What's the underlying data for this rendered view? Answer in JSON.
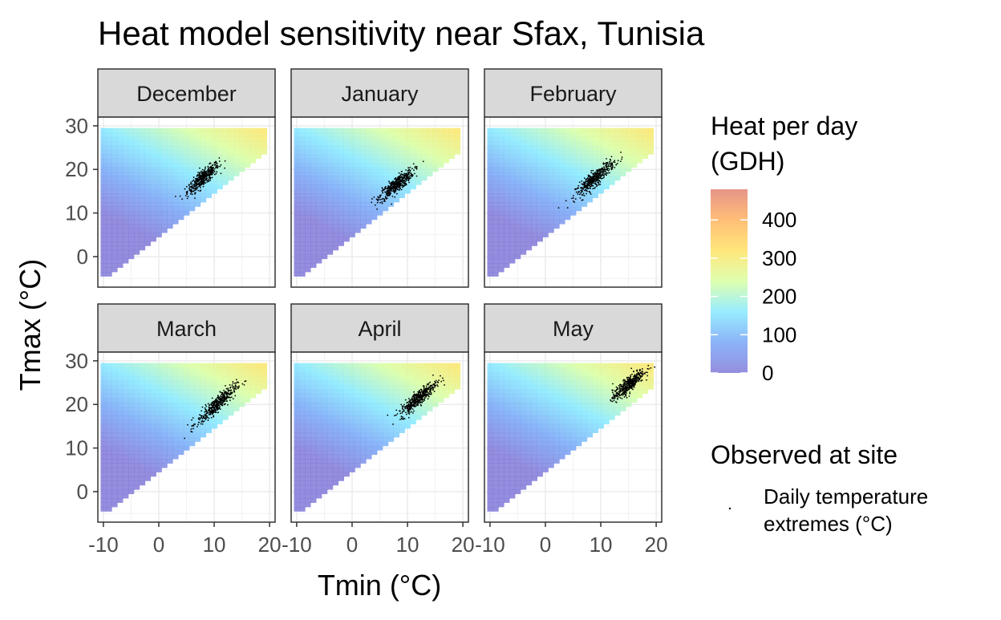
{
  "chart_data": {
    "type": "heatmap",
    "title": "Heat model sensitivity near Sfax, Tunisia",
    "xlabel": "Tmin (°C)",
    "ylabel": "Tmax (°C)",
    "xlim": [
      -11,
      21
    ],
    "ylim": [
      -7,
      32
    ],
    "x_ticks": [
      -10,
      0,
      10,
      20
    ],
    "y_ticks": [
      0,
      10,
      20,
      30
    ],
    "grid": true,
    "heat_surface": {
      "tmin_range": [
        -10,
        19.5
      ],
      "tmax_range": [
        -4,
        29.5
      ],
      "fill_range": [
        0,
        480
      ]
    },
    "colorbar": {
      "title_line1": "Heat per day",
      "title_line2": "(GDH)",
      "ticks": [
        0,
        100,
        200,
        300,
        400
      ],
      "range": [
        0,
        480
      ],
      "colors": [
        "#7a72d6",
        "#6fa0f6",
        "#7ee8ff",
        "#d6ff9c",
        "#ffe05a",
        "#ffae55",
        "#e07a6a"
      ]
    },
    "legend": {
      "title": "Observed at site",
      "label_line1": "Daily temperature",
      "label_line2": "extremes (°C)"
    },
    "facets": [
      {
        "name": "December",
        "tmin_center": 8.0,
        "tmax_center": 18.0,
        "tmin_spread": 2.6,
        "slope": 1.05,
        "points": 420
      },
      {
        "name": "January",
        "tmin_center": 8.0,
        "tmax_center": 16.5,
        "tmin_spread": 2.8,
        "slope": 0.95,
        "points": 420
      },
      {
        "name": "February",
        "tmin_center": 9.0,
        "tmax_center": 18.0,
        "tmin_spread": 3.2,
        "slope": 1.05,
        "points": 420
      },
      {
        "name": "March",
        "tmin_center": 10.5,
        "tmax_center": 20.0,
        "tmin_spread": 3.2,
        "slope": 1.1,
        "points": 420
      },
      {
        "name": "April",
        "tmin_center": 12.0,
        "tmax_center": 21.5,
        "tmin_spread": 3.0,
        "slope": 1.05,
        "points": 420
      },
      {
        "name": "May",
        "tmin_center": 15.0,
        "tmax_center": 24.5,
        "tmin_spread": 2.6,
        "slope": 1.05,
        "points": 420
      }
    ]
  }
}
